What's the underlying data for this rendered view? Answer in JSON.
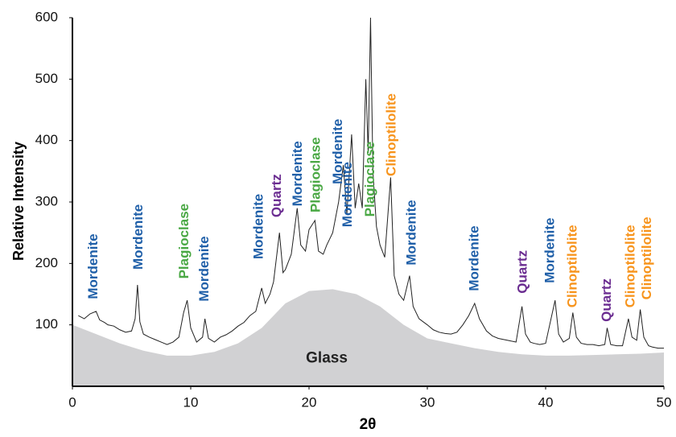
{
  "chart_data": {
    "type": "line",
    "ylabel": "Relative Intensity",
    "xlabel": "2θ",
    "xlim": [
      0,
      50
    ],
    "xticks": [
      0,
      10,
      20,
      30,
      40,
      50
    ],
    "ylim": [
      0,
      600
    ],
    "yticks": [
      100,
      200,
      300,
      400,
      500,
      600
    ],
    "x": [
      0.5,
      1,
      1.5,
      2,
      2.3,
      2.7,
      3,
      3.5,
      4,
      4.5,
      5,
      5.3,
      5.5,
      5.7,
      6,
      6.5,
      7,
      7.5,
      8,
      8.5,
      9,
      9.4,
      9.7,
      10,
      10.5,
      11,
      11.2,
      11.5,
      12,
      12.5,
      13,
      13.5,
      14,
      14.5,
      15,
      15.5,
      16,
      16.3,
      16.7,
      17,
      17.5,
      17.8,
      18,
      18.5,
      19,
      19.3,
      19.7,
      20,
      20.5,
      20.8,
      21.2,
      21.5,
      22,
      22.5,
      22.9,
      23.2,
      23.6,
      23.9,
      24.2,
      24.5,
      24.8,
      25,
      25.2,
      25.4,
      25.7,
      26,
      26.4,
      26.9,
      27.2,
      27.6,
      28,
      28.5,
      28.8,
      29.3,
      30,
      30.5,
      31,
      31.5,
      32,
      32.5,
      33,
      33.5,
      34,
      34.4,
      35,
      35.5,
      36,
      36.5,
      37,
      37.5,
      38,
      38.3,
      38.7,
      39,
      39.5,
      40,
      40.8,
      41.1,
      41.5,
      42,
      42.3,
      42.6,
      43,
      43.5,
      44,
      44.5,
      45,
      45.2,
      45.5,
      46,
      46.5,
      47,
      47.3,
      47.7,
      48,
      48.3,
      48.7,
      49,
      49.5,
      50
    ],
    "series": [
      {
        "color": "#222222",
        "values": [
          115,
          110,
          118,
          122,
          108,
          104,
          100,
          98,
          92,
          88,
          90,
          110,
          165,
          105,
          85,
          80,
          76,
          72,
          68,
          72,
          80,
          120,
          140,
          95,
          72,
          80,
          110,
          78,
          72,
          80,
          84,
          90,
          98,
          104,
          115,
          122,
          160,
          135,
          150,
          170,
          250,
          185,
          190,
          215,
          290,
          230,
          220,
          255,
          270,
          220,
          215,
          230,
          250,
          300,
          360,
          280,
          410,
          290,
          330,
          290,
          500,
          380,
          600,
          350,
          260,
          230,
          210,
          340,
          180,
          150,
          140,
          180,
          130,
          110,
          100,
          92,
          88,
          86,
          85,
          88,
          100,
          115,
          135,
          110,
          90,
          82,
          78,
          76,
          74,
          72,
          130,
          85,
          72,
          70,
          68,
          70,
          140,
          85,
          72,
          78,
          120,
          80,
          70,
          68,
          68,
          66,
          68,
          95,
          68,
          66,
          66,
          110,
          80,
          75,
          125,
          80,
          66,
          64,
          62,
          62
        ]
      }
    ],
    "area": {
      "label": "Glass",
      "color": "#d1d1d3",
      "x": [
        0,
        2,
        4,
        6,
        8,
        10,
        12,
        14,
        16,
        18,
        20,
        22,
        24,
        26,
        28,
        30,
        32,
        34,
        36,
        38,
        40,
        42,
        44,
        46,
        48,
        50
      ],
      "values": [
        100,
        85,
        70,
        58,
        50,
        50,
        56,
        70,
        95,
        135,
        155,
        158,
        150,
        130,
        100,
        78,
        70,
        62,
        56,
        52,
        50,
        50,
        51,
        52,
        53,
        55
      ],
      "label_x": 21.5,
      "label_y": 45
    },
    "annotations": [
      {
        "text": "Mordenite",
        "x": 1.8,
        "y": 142,
        "color": "#1f5fa8"
      },
      {
        "text": "Mordenite",
        "x": 5.6,
        "y": 190,
        "color": "#1f5fa8"
      },
      {
        "text": "Plagioclase",
        "x": 9.5,
        "y": 175,
        "color": "#4aa844"
      },
      {
        "text": "Mordenite",
        "x": 11.2,
        "y": 138,
        "color": "#1f5fa8"
      },
      {
        "text": "Mordenite",
        "x": 15.8,
        "y": 207,
        "color": "#1f5fa8"
      },
      {
        "text": "Quartz",
        "x": 17.3,
        "y": 275,
        "color": "#6b2d91"
      },
      {
        "text": "Mordenite",
        "x": 19.1,
        "y": 293,
        "color": "#1f5fa8"
      },
      {
        "text": "Plagioclase",
        "x": 20.6,
        "y": 283,
        "color": "#4aa844"
      },
      {
        "text": "Mordenite",
        "x": 22.5,
        "y": 329,
        "color": "#1f5fa8"
      },
      {
        "text": "Mordenite",
        "x": 23.3,
        "y": 259,
        "color": "#1f5fa8"
      },
      {
        "text": "Plagioclase",
        "x": 25.2,
        "y": 276,
        "color": "#4aa844"
      },
      {
        "text": "Clinoptilolite",
        "x": 27.0,
        "y": 342,
        "color": "#f7941d"
      },
      {
        "text": "Mordenite",
        "x": 28.7,
        "y": 197,
        "color": "#1f5fa8"
      },
      {
        "text": "Mordenite",
        "x": 34.0,
        "y": 155,
        "color": "#1f5fa8"
      },
      {
        "text": "Quartz",
        "x": 38.1,
        "y": 151,
        "color": "#6b2d91"
      },
      {
        "text": "Mordenite",
        "x": 40.4,
        "y": 168,
        "color": "#1f5fa8"
      },
      {
        "text": "Clinoptilolite",
        "x": 42.3,
        "y": 128,
        "color": "#f7941d"
      },
      {
        "text": "Quartz",
        "x": 45.2,
        "y": 105,
        "color": "#6b2d91"
      },
      {
        "text": "Clinoptilolite",
        "x": 47.2,
        "y": 128,
        "color": "#f7941d"
      },
      {
        "text": "Clinoptilolite",
        "x": 48.6,
        "y": 141,
        "color": "#f7941d"
      }
    ]
  }
}
